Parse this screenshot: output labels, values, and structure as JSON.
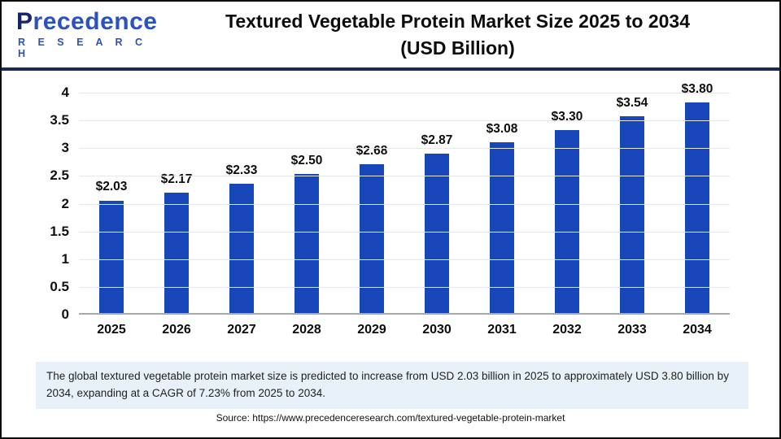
{
  "header": {
    "logo": {
      "brand_initial": "P",
      "brand_rest": "recedence",
      "brand_sub": "R E S E A R C H"
    },
    "title_line1": "Textured Vegetable Protein Market Size 2025 to 2034",
    "title_line2": "(USD Billion)"
  },
  "chart_data": {
    "type": "bar",
    "title": "Textured Vegetable Protein Market Size 2025 to 2034 (USD Billion)",
    "categories": [
      "2025",
      "2026",
      "2027",
      "2028",
      "2029",
      "2030",
      "2031",
      "2032",
      "2033",
      "2034"
    ],
    "values": [
      2.03,
      2.17,
      2.33,
      2.5,
      2.68,
      2.87,
      3.08,
      3.3,
      3.54,
      3.8
    ],
    "value_labels": [
      "$2.03",
      "$2.17",
      "$2.33",
      "$2.50",
      "$2.68",
      "$2.87",
      "$3.08",
      "$3.30",
      "$3.54",
      "$3.80"
    ],
    "xlabel": "",
    "ylabel": "",
    "ylim": [
      0,
      4
    ],
    "ytick_step": 0.5,
    "ytick_labels": [
      "0",
      "0.5",
      "1",
      "1.5",
      "2",
      "2.5",
      "3",
      "3.5",
      "4"
    ],
    "grid": true,
    "legend": false,
    "bar_color": "#1646b8"
  },
  "summary": {
    "text": "The global textured vegetable protein market size is predicted to increase from USD 2.03 billion in 2025 to approximately USD 3.80 billion by 2034, expanding at a CAGR of 7.23% from 2025 to 2034."
  },
  "source": {
    "text": "Source: https://www.precedenceresearch.com/textured-vegetable-protein-market"
  },
  "colors": {
    "bar": "#1646b8",
    "divider_navy": "#1b2a55",
    "summary_bg": "#e8f1f9",
    "logo_dark": "#14266b",
    "logo_blue": "#2a52c0",
    "gridline": "#e7e7e7",
    "baseline": "#a8a8a8"
  }
}
